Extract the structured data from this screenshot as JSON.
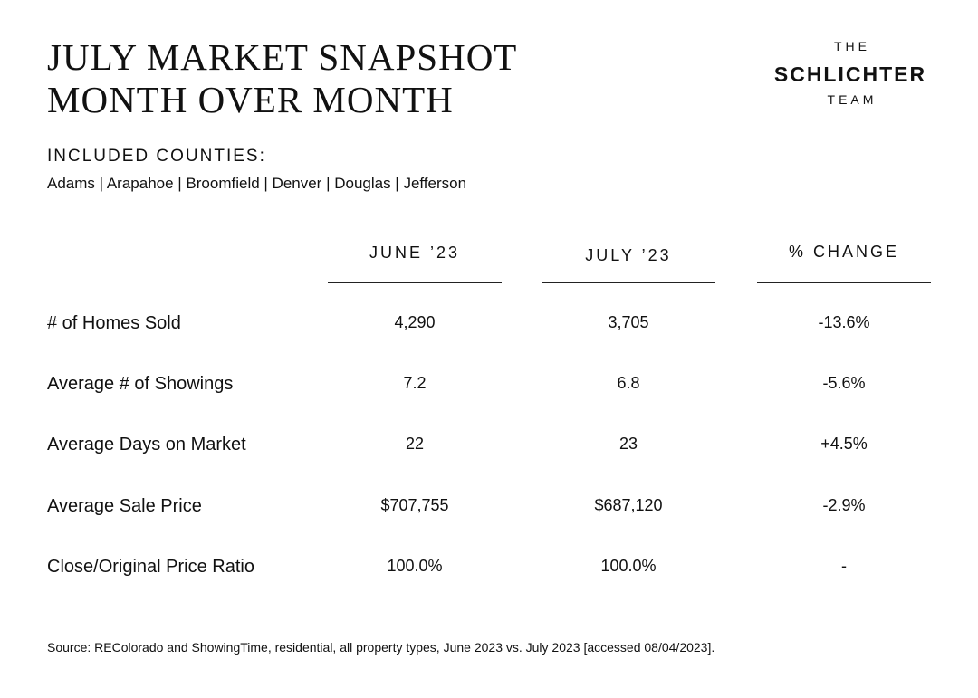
{
  "header": {
    "title_line1": "JULY MARKET SNAPSHOT",
    "title_line2": "MONTH OVER MONTH"
  },
  "logo": {
    "top": "THE",
    "main": "SCHLICHTER",
    "bottom": "TEAM"
  },
  "counties": {
    "heading": "INCLUDED COUNTIES:",
    "list": "Adams | Arapahoe | Broomfield | Denver | Douglas | Jefferson"
  },
  "table": {
    "columns": [
      "JUNE ’23",
      "JULY ’23",
      "% CHANGE"
    ],
    "rows": [
      {
        "label": "# of Homes Sold",
        "june": "4,290",
        "july": "3,705",
        "change": "-13.6%"
      },
      {
        "label": "Average # of Showings",
        "june": "7.2",
        "july": "6.8",
        "change": "-5.6%"
      },
      {
        "label": "Average Days on Market",
        "june": "22",
        "july": "23",
        "change": "+4.5%"
      },
      {
        "label": "Average Sale Price",
        "june": "$707,755",
        "july": "$687,120",
        "change": "-2.9%"
      },
      {
        "label": "Close/Original Price Ratio",
        "june": "100.0%",
        "july": "100.0%",
        "change": "-"
      }
    ]
  },
  "footer": {
    "source": "Source: REColorado and ShowingTime, residential, all property types, June 2023 vs. July 2023 [accessed 08/04/2023]."
  }
}
